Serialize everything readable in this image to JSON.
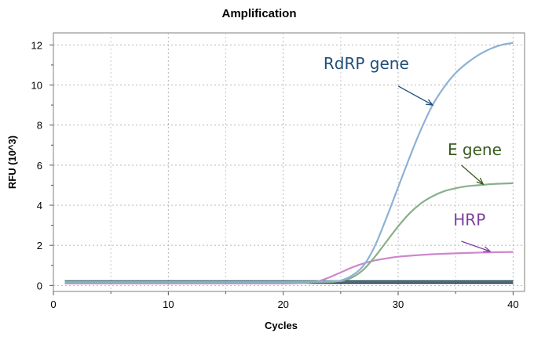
{
  "chart_data": {
    "type": "line",
    "title": "Amplification",
    "xlabel": "Cycles",
    "ylabel": "RFU (10^3)",
    "xlim": [
      0,
      41
    ],
    "ylim": [
      -0.3,
      12.6
    ],
    "xticks": [
      0,
      10,
      20,
      30,
      40
    ],
    "yticks": [
      0,
      2,
      4,
      6,
      8,
      10,
      12
    ],
    "grid": true,
    "legend": "none",
    "series": [
      {
        "name": "RdRP gene",
        "color": "#8eb1d4",
        "x": [
          1,
          5,
          10,
          15,
          20,
          24,
          25,
          26,
          27,
          28,
          29,
          30,
          31,
          32,
          33,
          34,
          35,
          36,
          37,
          38,
          39,
          40
        ],
        "y": [
          0.18,
          0.18,
          0.18,
          0.18,
          0.18,
          0.2,
          0.25,
          0.5,
          1.0,
          2.0,
          3.4,
          4.9,
          6.4,
          7.8,
          9.0,
          9.9,
          10.6,
          11.1,
          11.5,
          11.8,
          12.0,
          12.1
        ]
      },
      {
        "name": "E gene",
        "color": "#86b08a",
        "x": [
          1,
          5,
          10,
          15,
          20,
          24,
          25,
          26,
          27,
          28,
          29,
          30,
          31,
          32,
          33,
          34,
          35,
          36,
          37,
          38,
          39,
          40
        ],
        "y": [
          0.15,
          0.15,
          0.15,
          0.15,
          0.15,
          0.17,
          0.22,
          0.4,
          0.8,
          1.45,
          2.2,
          2.95,
          3.6,
          4.1,
          4.45,
          4.7,
          4.85,
          4.95,
          5.0,
          5.05,
          5.08,
          5.1
        ]
      },
      {
        "name": "HRP",
        "color": "#cc88cc",
        "x": [
          1,
          5,
          10,
          15,
          20,
          22,
          23,
          24,
          25,
          26,
          27,
          28,
          29,
          30,
          32,
          34,
          36,
          38,
          40
        ],
        "y": [
          0.1,
          0.1,
          0.1,
          0.1,
          0.1,
          0.13,
          0.2,
          0.4,
          0.65,
          0.9,
          1.1,
          1.25,
          1.35,
          1.43,
          1.52,
          1.58,
          1.62,
          1.65,
          1.67
        ]
      },
      {
        "name": "",
        "color": "#1a4a4a",
        "x": [
          1,
          40
        ],
        "y": [
          0.22,
          0.22
        ]
      },
      {
        "name": "",
        "color": "#1f3050",
        "x": [
          1,
          40
        ],
        "y": [
          0.12,
          0.12
        ]
      }
    ],
    "annotations": [
      {
        "text": "RdRP gene",
        "color": "#1f4e79",
        "text_x": 23.5,
        "text_y": 10.8,
        "arrow_from": [
          30.0,
          9.95
        ],
        "arrow_to": [
          33.0,
          9.0
        ]
      },
      {
        "text": "E gene",
        "color": "#3a5a1e",
        "text_x": 34.3,
        "text_y": 6.5,
        "arrow_from": [
          35.5,
          6.0
        ],
        "arrow_to": [
          37.4,
          5.05
        ]
      },
      {
        "text": "HRP",
        "color": "#7b3fa0",
        "text_x": 34.8,
        "text_y": 3.0,
        "arrow_from": [
          35.5,
          2.2
        ],
        "arrow_to": [
          38.0,
          1.7
        ]
      }
    ]
  }
}
